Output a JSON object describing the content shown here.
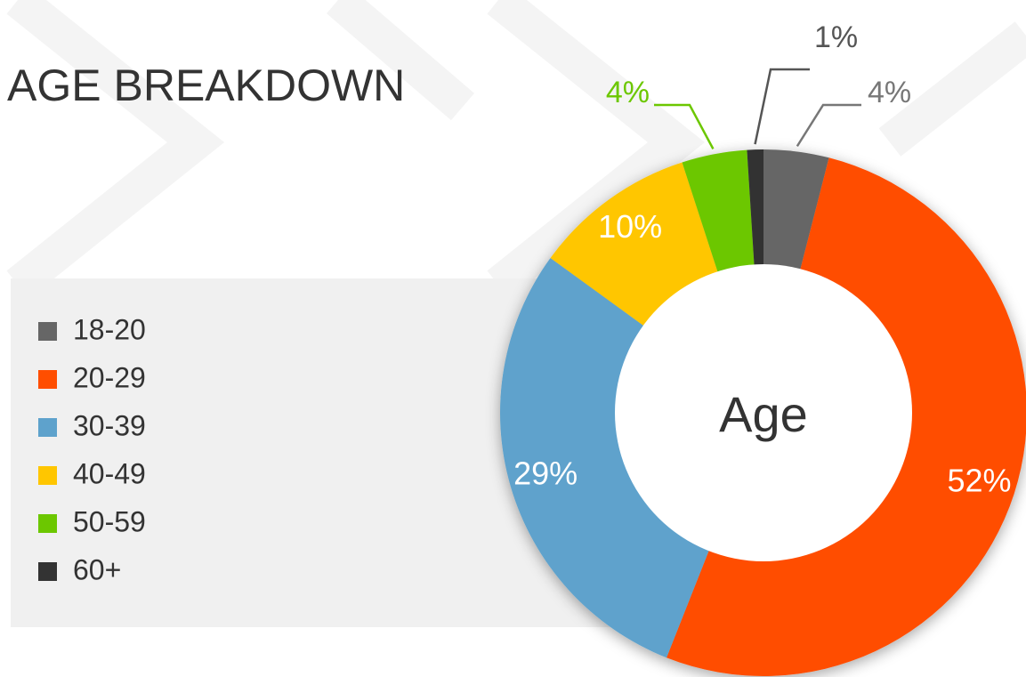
{
  "chart_data": {
    "type": "donut",
    "title": "AGE BREAKDOWN",
    "center_label": "Age",
    "categories": [
      "18-20",
      "20-29",
      "30-39",
      "40-49",
      "50-59",
      "60+"
    ],
    "values": [
      4,
      52,
      29,
      10,
      4,
      1
    ],
    "value_labels": [
      "4%",
      "52%",
      "29%",
      "10%",
      "4%",
      "1%"
    ],
    "colors": [
      "#666666",
      "#ff4e00",
      "#5ea2cc",
      "#ffc600",
      "#6cc700",
      "#333333"
    ],
    "legend": "left"
  }
}
